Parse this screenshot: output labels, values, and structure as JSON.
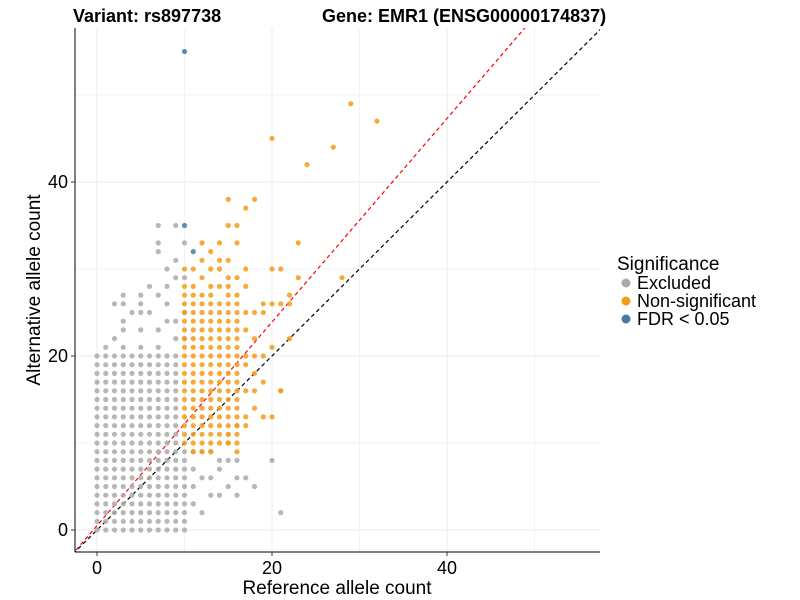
{
  "chart_data": {
    "type": "scatter",
    "title_left": "Variant: rs897738",
    "title_right": "Gene: EMR1 (ENSG00000174837)",
    "xlabel": "Reference allele count",
    "ylabel": "Alternative allele count",
    "xlim": [
      -2.5,
      57
    ],
    "ylim": [
      -2.5,
      58
    ],
    "x_ticks": [
      0,
      20,
      40
    ],
    "y_ticks": [
      0,
      20,
      40
    ],
    "grid": true,
    "legend": {
      "title": "Significance",
      "position": "right",
      "entries": [
        {
          "name": "Excluded",
          "color": "#aaaaaa"
        },
        {
          "name": "Non-significant",
          "color": "#f39c1a"
        },
        {
          "name": "FDR < 0.05",
          "color": "#4a76a8"
        }
      ]
    },
    "reference_lines": [
      {
        "name": "identity",
        "slope": 1,
        "intercept": 0,
        "color": "#000000",
        "style": "dashed"
      },
      {
        "name": "fitted",
        "slope": 1.17,
        "intercept": 0.5,
        "color": "#ff0000",
        "style": "dashed"
      }
    ],
    "series": [
      {
        "name": "Excluded",
        "color": "#aaaaaa",
        "grid_block": {
          "x_from": 0,
          "x_to": 9,
          "y_from": 0,
          "y_to": 20
        },
        "points": [
          [
            1,
            21
          ],
          [
            2,
            22
          ],
          [
            3,
            21
          ],
          [
            5,
            21
          ],
          [
            7,
            21
          ],
          [
            3,
            23
          ],
          [
            5,
            23
          ],
          [
            7,
            23
          ],
          [
            3,
            24
          ],
          [
            4,
            25
          ],
          [
            5,
            25
          ],
          [
            6,
            25
          ],
          [
            2,
            26
          ],
          [
            3,
            26
          ],
          [
            5,
            26
          ],
          [
            8,
            26
          ],
          [
            3,
            27
          ],
          [
            5,
            27
          ],
          [
            7,
            27
          ],
          [
            6,
            28
          ],
          [
            8,
            28
          ],
          [
            9,
            29
          ],
          [
            7,
            32
          ],
          [
            7,
            33
          ],
          [
            7,
            35
          ],
          [
            9,
            35
          ],
          [
            10,
            33
          ],
          [
            10,
            0
          ],
          [
            10,
            1
          ],
          [
            10,
            2
          ],
          [
            10,
            3
          ],
          [
            10,
            4
          ],
          [
            10,
            5
          ],
          [
            10,
            6
          ],
          [
            10,
            7
          ],
          [
            10,
            8
          ],
          [
            10,
            9
          ],
          [
            11,
            3
          ],
          [
            11,
            5
          ],
          [
            11,
            7
          ],
          [
            12,
            2
          ],
          [
            12,
            6
          ],
          [
            13,
            4
          ],
          [
            13,
            6
          ],
          [
            14,
            4
          ],
          [
            14,
            7
          ],
          [
            15,
            5
          ],
          [
            16,
            4
          ],
          [
            16,
            6
          ],
          [
            17,
            6
          ],
          [
            18,
            5
          ],
          [
            20,
            8
          ],
          [
            21,
            2
          ],
          [
            14,
            8
          ],
          [
            15,
            8
          ],
          [
            16,
            8
          ],
          [
            13,
            9
          ],
          [
            11,
            9
          ],
          [
            12,
            9
          ],
          [
            8,
            30
          ],
          [
            9,
            31
          ],
          [
            10,
            29
          ],
          [
            8,
            24
          ],
          [
            9,
            24
          ],
          [
            9,
            22
          ],
          [
            10,
            22
          ],
          [
            10,
            25
          ]
        ]
      },
      {
        "name": "Non-significant",
        "color": "#f39c1a",
        "grid_block": {
          "x_from": 10,
          "x_to": 16,
          "y_from": 10,
          "y_to": 26
        },
        "points": [
          [
            10,
            27
          ],
          [
            10,
            28
          ],
          [
            10,
            30
          ],
          [
            11,
            27
          ],
          [
            11,
            28
          ],
          [
            11,
            30
          ],
          [
            12,
            27
          ],
          [
            12,
            29
          ],
          [
            12,
            31
          ],
          [
            12,
            33
          ],
          [
            13,
            27
          ],
          [
            13,
            28
          ],
          [
            13,
            30
          ],
          [
            13,
            32
          ],
          [
            14,
            28
          ],
          [
            14,
            30
          ],
          [
            14,
            31
          ],
          [
            14,
            33
          ],
          [
            15,
            27
          ],
          [
            15,
            28
          ],
          [
            15,
            29
          ],
          [
            15,
            31
          ],
          [
            15,
            35
          ],
          [
            15,
            38
          ],
          [
            16,
            27
          ],
          [
            16,
            29
          ],
          [
            16,
            33
          ],
          [
            16,
            35
          ],
          [
            17,
            28
          ],
          [
            17,
            30
          ],
          [
            17,
            37
          ],
          [
            18,
            38
          ],
          [
            17,
            25
          ],
          [
            18,
            25
          ],
          [
            17,
            23
          ],
          [
            18,
            22
          ],
          [
            19,
            26
          ],
          [
            19,
            25
          ],
          [
            20,
            26
          ],
          [
            21,
            26
          ],
          [
            22,
            26
          ],
          [
            20,
            30
          ],
          [
            21,
            30
          ],
          [
            22,
            27
          ],
          [
            23,
            29
          ],
          [
            23,
            33
          ],
          [
            28,
            29
          ],
          [
            18,
            20
          ],
          [
            18,
            18
          ],
          [
            19,
            20
          ],
          [
            19,
            17
          ],
          [
            20,
            21
          ],
          [
            21,
            16
          ],
          [
            22,
            22
          ],
          [
            17,
            16
          ],
          [
            18,
            16
          ],
          [
            17,
            13
          ],
          [
            18,
            14
          ],
          [
            17,
            12
          ],
          [
            19,
            13
          ],
          [
            20,
            13
          ],
          [
            21,
            16
          ],
          [
            17,
            20
          ],
          [
            17,
            19
          ],
          [
            11,
            9
          ],
          [
            12,
            9
          ],
          [
            13,
            9
          ],
          [
            15,
            10
          ],
          [
            16,
            9
          ],
          [
            16,
            12
          ],
          [
            20,
            45
          ],
          [
            24,
            42
          ],
          [
            27,
            44
          ],
          [
            29,
            49
          ],
          [
            32,
            47
          ],
          [
            15,
            11
          ]
        ]
      },
      {
        "name": "FDR < 0.05",
        "color": "#4a76a8",
        "points": [
          [
            10,
            55
          ],
          [
            10,
            35
          ],
          [
            11,
            32
          ]
        ]
      }
    ]
  }
}
